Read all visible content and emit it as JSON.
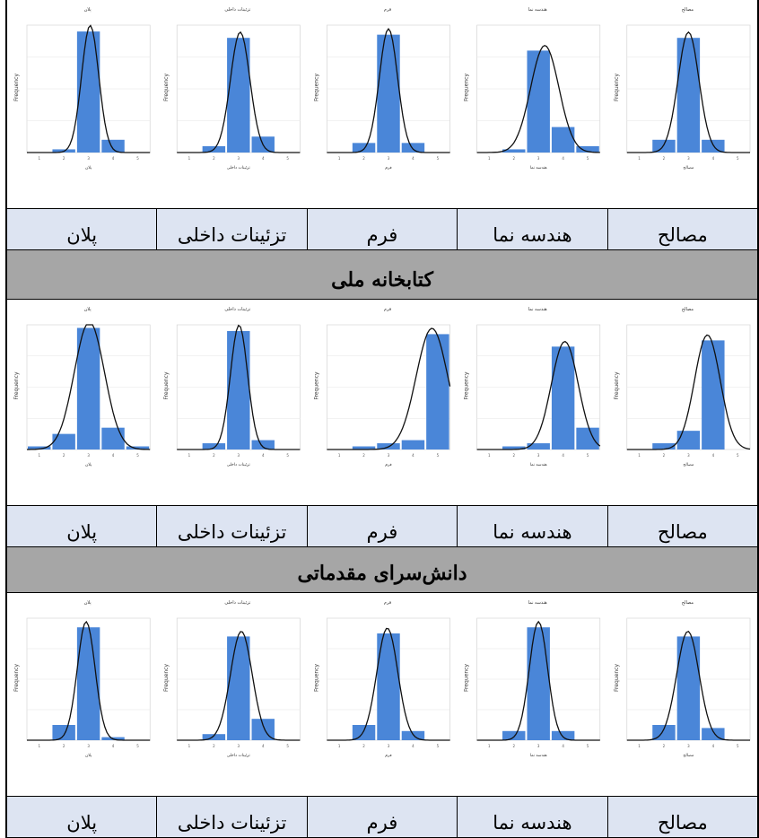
{
  "colors": {
    "bar": "#4a86d8",
    "curve": "#111111",
    "header_bg": "#a6a6a6",
    "label_bg": "#dde4f2"
  },
  "axis_label": "Frequency",
  "sections": [
    {
      "title": "",
      "labels": [
        "مصالح",
        "هندسه نما",
        "فرم",
        "تزئینات داخلی",
        "پلان"
      ],
      "chart_data": [
        {
          "type": "bar",
          "title": "مصالح",
          "categories": [
            "1",
            "2",
            "3",
            "4",
            "5"
          ],
          "values": [
            0,
            4,
            36,
            4,
            0
          ],
          "ylim": [
            0,
            40
          ]
        },
        {
          "type": "bar",
          "title": "هندسه نما",
          "categories": [
            "1",
            "2",
            "3",
            "4",
            "5"
          ],
          "values": [
            0,
            1,
            32,
            8,
            2
          ],
          "ylim": [
            0,
            40
          ]
        },
        {
          "type": "bar",
          "title": "فرم",
          "categories": [
            "1",
            "2",
            "3",
            "4",
            "5"
          ],
          "values": [
            0,
            3,
            37,
            3,
            0
          ],
          "ylim": [
            0,
            40
          ]
        },
        {
          "type": "bar",
          "title": "تزئینات داخلی",
          "categories": [
            "1",
            "2",
            "3",
            "4",
            "5"
          ],
          "values": [
            0,
            2,
            36,
            5,
            0
          ],
          "ylim": [
            0,
            40
          ]
        },
        {
          "type": "bar",
          "title": "پلان",
          "categories": [
            "1",
            "2",
            "3",
            "4",
            "5"
          ],
          "values": [
            0,
            1,
            38,
            4,
            0
          ],
          "ylim": [
            0,
            40
          ]
        }
      ]
    },
    {
      "title": "کتابخانه ملی",
      "labels": [
        "مصالح",
        "هندسه نما",
        "فرم",
        "تزئینات داخلی",
        "پلان"
      ],
      "chart_data": [
        {
          "type": "bar",
          "title": "مصالح",
          "categories": [
            "1",
            "2",
            "3",
            "4",
            "5"
          ],
          "values": [
            0,
            2,
            6,
            35,
            0
          ],
          "ylim": [
            0,
            40
          ]
        },
        {
          "type": "bar",
          "title": "هندسه نما",
          "categories": [
            "1",
            "2",
            "3",
            "4",
            "5"
          ],
          "values": [
            0,
            1,
            2,
            33,
            7
          ],
          "ylim": [
            0,
            40
          ]
        },
        {
          "type": "bar",
          "title": "فرم",
          "categories": [
            "1",
            "2",
            "3",
            "4",
            "5"
          ],
          "values": [
            0,
            1,
            2,
            3,
            37
          ],
          "ylim": [
            0,
            40
          ]
        },
        {
          "type": "bar",
          "title": "تزئینات داخلی",
          "categories": [
            "1",
            "2",
            "3",
            "4",
            "5"
          ],
          "values": [
            0,
            2,
            38,
            3,
            0
          ],
          "ylim": [
            0,
            40
          ]
        },
        {
          "type": "bar",
          "title": "پلان",
          "categories": [
            "1",
            "2",
            "3",
            "4",
            "5"
          ],
          "values": [
            1,
            5,
            39,
            7,
            1
          ],
          "ylim": [
            0,
            40
          ]
        }
      ]
    },
    {
      "title": "دانش‌سرای مقدماتی",
      "labels": [
        "مصالح",
        "هندسه نما",
        "فرم",
        "تزئینات داخلی",
        "پلان"
      ],
      "chart_data": [
        {
          "type": "bar",
          "title": "مصالح",
          "categories": [
            "1",
            "2",
            "3",
            "4",
            "5"
          ],
          "values": [
            0,
            5,
            34,
            4,
            0
          ],
          "ylim": [
            0,
            40
          ]
        },
        {
          "type": "bar",
          "title": "هندسه نما",
          "categories": [
            "1",
            "2",
            "3",
            "4",
            "5"
          ],
          "values": [
            0,
            3,
            37,
            3,
            0
          ],
          "ylim": [
            0,
            40
          ]
        },
        {
          "type": "bar",
          "title": "فرم",
          "categories": [
            "1",
            "2",
            "3",
            "4",
            "5"
          ],
          "values": [
            0,
            5,
            35,
            3,
            0
          ],
          "ylim": [
            0,
            40
          ]
        },
        {
          "type": "bar",
          "title": "تزئینات داخلی",
          "categories": [
            "1",
            "2",
            "3",
            "4",
            "5"
          ],
          "values": [
            0,
            2,
            34,
            7,
            0
          ],
          "ylim": [
            0,
            40
          ]
        },
        {
          "type": "bar",
          "title": "پلان",
          "categories": [
            "1",
            "2",
            "3",
            "4",
            "5"
          ],
          "values": [
            0,
            5,
            37,
            1,
            0
          ],
          "ylim": [
            0,
            40
          ]
        }
      ]
    }
  ]
}
